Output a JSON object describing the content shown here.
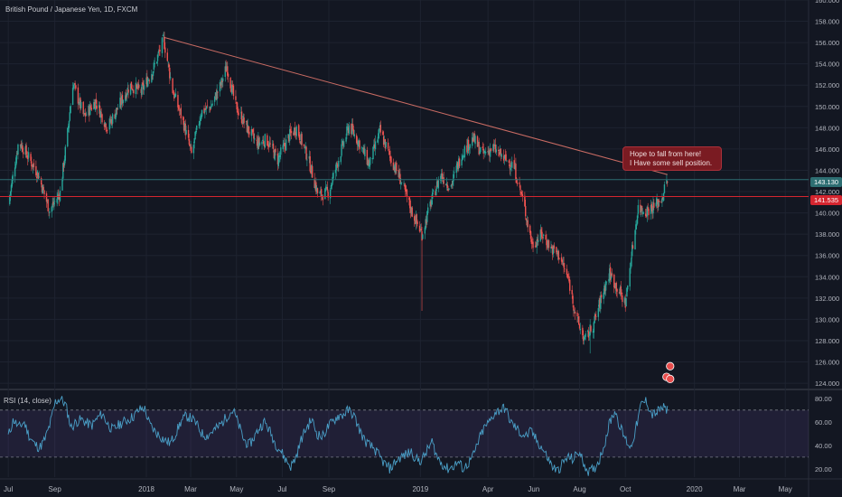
{
  "header": {
    "title": "British Pound / Japanese Yen, 1D, FXCM"
  },
  "annotation": {
    "line1": "Hope to fall from here!",
    "line2": "I Have some sell position."
  },
  "markers": {
    "current_price": "143.130",
    "resistance_level": "141.535"
  },
  "rsi": {
    "title": "RSI (14, close)",
    "ticks": [
      "80.00",
      "60.00",
      "40.00",
      "20.00"
    ],
    "upper_band": 70,
    "lower_band": 30
  },
  "colors": {
    "background": "#131722",
    "up": "#26a69a",
    "down": "#ef5350",
    "trendline": "#c96b63",
    "level_line": "#d5252f",
    "price_line": "#2d6e72",
    "rsi_line": "#4a9fc7",
    "rsi_band": "#7e57c2"
  },
  "chart_data": [
    {
      "type": "candlestick",
      "title": "British Pound / Japanese Yen, 1D, FXCM",
      "x_tick_labels": [
        "Jul",
        "Sep",
        "2018",
        "Mar",
        "May",
        "Jul",
        "Sep",
        "2019",
        "Apr",
        "Jun",
        "Aug",
        "Oct",
        "2020",
        "Mar",
        "May"
      ],
      "y_tick_labels": [
        "160.000",
        "158.000",
        "156.000",
        "154.000",
        "152.000",
        "150.000",
        "148.000",
        "146.000",
        "144.000",
        "142.000",
        "140.000",
        "138.000",
        "136.000",
        "134.000",
        "132.000",
        "130.000",
        "128.000",
        "126.000",
        "124.000"
      ],
      "ylim": [
        123.5,
        160
      ],
      "close_path": [
        [
          "2017-07-01",
          140.8
        ],
        [
          "2017-07-15",
          146.8
        ],
        [
          "2017-07-28",
          145.2
        ],
        [
          "2017-08-10",
          143.6
        ],
        [
          "2017-08-25",
          140.2
        ],
        [
          "2017-09-08",
          141.9
        ],
        [
          "2017-09-18",
          147.5
        ],
        [
          "2017-09-25",
          152.2
        ],
        [
          "2017-10-10",
          149.0
        ],
        [
          "2017-10-25",
          150.5
        ],
        [
          "2017-11-10",
          148.0
        ],
        [
          "2017-11-25",
          150.0
        ],
        [
          "2017-12-10",
          152.0
        ],
        [
          "2017-12-25",
          151.4
        ],
        [
          "2018-01-10",
          153.5
        ],
        [
          "2018-01-24",
          156.3
        ],
        [
          "2018-02-05",
          151.5
        ],
        [
          "2018-02-20",
          148.3
        ],
        [
          "2018-03-02",
          145.5
        ],
        [
          "2018-03-15",
          149.5
        ],
        [
          "2018-03-28",
          150.0
        ],
        [
          "2018-04-10",
          152.0
        ],
        [
          "2018-04-18",
          153.8
        ],
        [
          "2018-04-30",
          150.0
        ],
        [
          "2018-05-15",
          148.0
        ],
        [
          "2018-05-28",
          146.5
        ],
        [
          "2018-06-10",
          146.9
        ],
        [
          "2018-06-25",
          145.0
        ],
        [
          "2018-07-10",
          147.2
        ],
        [
          "2018-07-20",
          148.0
        ],
        [
          "2018-08-05",
          145.0
        ],
        [
          "2018-08-18",
          141.6
        ],
        [
          "2018-09-01",
          142.0
        ],
        [
          "2018-09-15",
          145.3
        ],
        [
          "2018-09-28",
          148.2
        ],
        [
          "2018-10-12",
          146.5
        ],
        [
          "2018-10-25",
          144.5
        ],
        [
          "2018-11-08",
          147.7
        ],
        [
          "2018-11-22",
          145.2
        ],
        [
          "2018-12-05",
          143.2
        ],
        [
          "2018-12-20",
          140.2
        ],
        [
          "2019-01-03",
          138.0
        ],
        [
          "2019-01-15",
          141.0
        ],
        [
          "2019-01-28",
          143.6
        ],
        [
          "2019-02-10",
          142.4
        ],
        [
          "2019-02-25",
          145.6
        ],
        [
          "2019-03-12",
          147.0
        ],
        [
          "2019-03-25",
          145.5
        ],
        [
          "2019-04-08",
          146.1
        ],
        [
          "2019-04-22",
          145.1
        ],
        [
          "2019-05-05",
          144.5
        ],
        [
          "2019-05-18",
          141.0
        ],
        [
          "2019-05-30",
          137.0
        ],
        [
          "2019-06-12",
          138.0
        ],
        [
          "2019-06-25",
          136.6
        ],
        [
          "2019-07-05",
          136.0
        ],
        [
          "2019-07-18",
          133.5
        ],
        [
          "2019-07-28",
          130.0
        ],
        [
          "2019-08-08",
          128.0
        ],
        [
          "2019-08-20",
          129.6
        ],
        [
          "2019-09-03",
          133.0
        ],
        [
          "2019-09-10",
          134.3
        ],
        [
          "2019-09-20",
          133.0
        ],
        [
          "2019-10-01",
          131.5
        ],
        [
          "2019-10-10",
          136.5
        ],
        [
          "2019-10-18",
          140.5
        ],
        [
          "2019-10-28",
          140.2
        ],
        [
          "2019-11-08",
          140.6
        ],
        [
          "2019-11-18",
          141.3
        ],
        [
          "2019-11-26",
          143.1
        ]
      ],
      "events": [
        {
          "date": "2019-01-03",
          "wick_low": 130.8
        },
        {
          "date": "2019-08-15",
          "wick_low": 126.8
        }
      ],
      "trendline": [
        [
          "2018-01-24",
          156.5
        ],
        [
          "2019-11-26",
          143.6
        ]
      ],
      "horizontal_levels": [
        {
          "label": "141.535",
          "value": 141.535
        },
        {
          "label": "143.130",
          "value": 143.13
        }
      ]
    },
    {
      "type": "line",
      "title": "RSI (14, close)",
      "ylim": [
        13,
        86
      ],
      "y_tick_labels": [
        "80.00",
        "60.00",
        "40.00",
        "20.00"
      ],
      "series": [
        {
          "name": "RSI (14, close)",
          "values": [
            48,
            62,
            55,
            60,
            48,
            41,
            38,
            45,
            58,
            77,
            80,
            74,
            55,
            60,
            62,
            59,
            57,
            63,
            67,
            58,
            53,
            57,
            60,
            62,
            65,
            70,
            72,
            58,
            52,
            48,
            44,
            42,
            50,
            60,
            65,
            63,
            58,
            50,
            48,
            52,
            55,
            60,
            66,
            70,
            58,
            45,
            40,
            47,
            55,
            60,
            52,
            42,
            36,
            28,
            22,
            30,
            45,
            55,
            62,
            50,
            47,
            55,
            60,
            65,
            66,
            70,
            66,
            55,
            45,
            40,
            37,
            30,
            24,
            20,
            26,
            30,
            32,
            35,
            28,
            27,
            35,
            43,
            30,
            24,
            20,
            22,
            26,
            20,
            25,
            32,
            45,
            55,
            60,
            68,
            70,
            72,
            60,
            55,
            50,
            48,
            52,
            44,
            38,
            30,
            22,
            18,
            25,
            30,
            28,
            35,
            25,
            17,
            20,
            28,
            42,
            60,
            70,
            55,
            45,
            38,
            55,
            75,
            78,
            66,
            68,
            72,
            70
          ]
        }
      ]
    }
  ]
}
